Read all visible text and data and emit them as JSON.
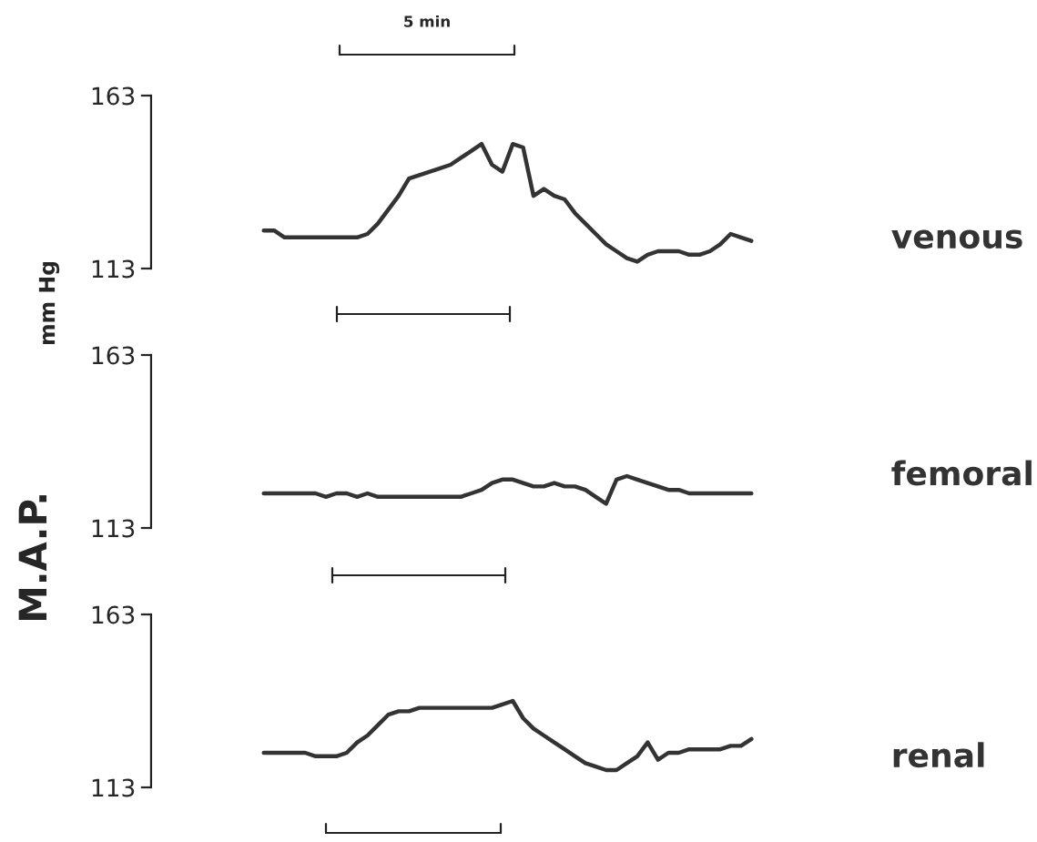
{
  "chart_data": [
    {
      "type": "line",
      "ylabel": "mm Hg",
      "annotations": [
        "5 min"
      ],
      "tick_labels": "y",
      "ylim": [
        113,
        163
      ],
      "yticks": [
        113,
        163
      ],
      "categories": [
        null,
        null,
        null,
        null,
        null,
        null,
        null,
        null,
        null,
        null,
        null,
        null,
        null,
        null,
        null,
        null,
        null,
        null,
        null,
        null,
        null,
        null,
        null,
        null,
        null,
        null,
        null,
        null,
        null,
        null,
        null,
        null,
        null,
        null,
        null,
        null,
        null,
        null,
        null,
        null,
        null,
        null,
        null,
        null,
        null,
        null,
        null,
        null
      ],
      "series": [
        {
          "name": "venous",
          "color": "#333333",
          "values": [
            124,
            124,
            122,
            122,
            122,
            122,
            122,
            122,
            122,
            122,
            123,
            126,
            130,
            134,
            139,
            140,
            141,
            142,
            143,
            145,
            147,
            149,
            143,
            141,
            149,
            148,
            134,
            136,
            134,
            133,
            129,
            126,
            123,
            120,
            118,
            116,
            115,
            117,
            118,
            118,
            118,
            117,
            117,
            118,
            120,
            123,
            122,
            121
          ]
        }
      ]
    },
    {
      "type": "line",
      "ylabel": "M.A.P.",
      "tick_labels": "y",
      "ylim": [
        113,
        163
      ],
      "yticks": [
        113,
        163
      ],
      "categories": [
        null,
        null,
        null,
        null,
        null,
        null,
        null,
        null,
        null,
        null,
        null,
        null,
        null,
        null,
        null,
        null,
        null,
        null,
        null,
        null,
        null,
        null,
        null,
        null,
        null,
        null,
        null,
        null,
        null,
        null,
        null,
        null,
        null,
        null,
        null,
        null,
        null,
        null,
        null,
        null,
        null,
        null,
        null,
        null,
        null,
        null,
        null,
        null
      ],
      "series": [
        {
          "name": "femoral",
          "color": "#333333",
          "values": [
            123,
            123,
            123,
            123,
            123,
            123,
            122,
            123,
            123,
            122,
            123,
            122,
            122,
            122,
            122,
            122,
            122,
            122,
            122,
            122,
            123,
            124,
            126,
            127,
            127,
            126,
            125,
            125,
            126,
            125,
            125,
            124,
            122,
            120,
            127,
            128,
            127,
            126,
            125,
            124,
            124,
            123,
            123,
            123,
            123,
            123,
            123,
            123
          ]
        }
      ]
    },
    {
      "type": "line",
      "tick_labels": "y",
      "ylim": [
        113,
        163
      ],
      "yticks": [
        113,
        163
      ],
      "categories": [
        null,
        null,
        null,
        null,
        null,
        null,
        null,
        null,
        null,
        null,
        null,
        null,
        null,
        null,
        null,
        null,
        null,
        null,
        null,
        null,
        null,
        null,
        null,
        null,
        null,
        null,
        null,
        null,
        null,
        null,
        null,
        null,
        null,
        null,
        null,
        null,
        null,
        null,
        null,
        null,
        null,
        null,
        null,
        null,
        null,
        null,
        null,
        null
      ],
      "series": [
        {
          "name": "renal",
          "color": "#333333",
          "values": [
            123,
            123,
            123,
            123,
            123,
            122,
            122,
            122,
            123,
            126,
            128,
            131,
            134,
            135,
            135,
            136,
            136,
            136,
            136,
            136,
            136,
            136,
            136,
            137,
            138,
            133,
            130,
            128,
            126,
            124,
            122,
            120,
            119,
            118,
            118,
            120,
            122,
            126,
            121,
            123,
            123,
            124,
            124,
            124,
            124,
            125,
            125,
            127
          ]
        }
      ]
    }
  ]
}
